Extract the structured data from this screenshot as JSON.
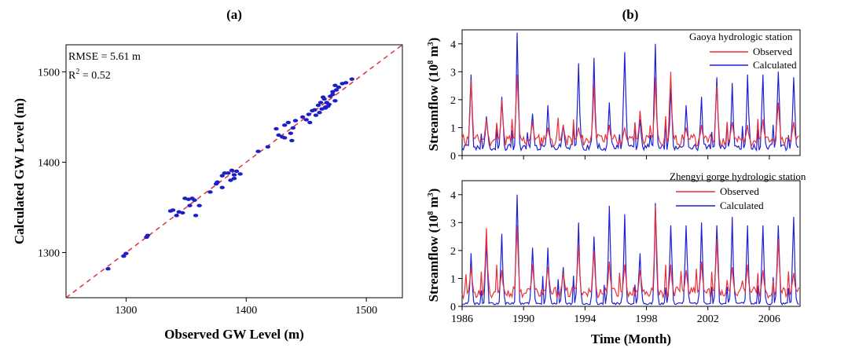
{
  "colors": {
    "observed": "#e8313a",
    "calculated": "#1f1fd6",
    "scatter": "#1e1ec8",
    "one_to_one": "#e0303a"
  },
  "chart_data": [
    {
      "panel_label": "(a)",
      "type": "scatter",
      "xlabel": "Observed GW Level (m)",
      "ylabel": "Calculated GW Level (m)",
      "xlim": [
        1250,
        1530
      ],
      "ylim": [
        1250,
        1530
      ],
      "xticks": [
        1300,
        1400,
        1500
      ],
      "yticks": [
        1300,
        1400,
        1500
      ],
      "annotations": {
        "rmse": "RMSE = 5.61 m",
        "r2_prefix": "R",
        "r2_exp": "2",
        "r2_value": " = 0.52"
      },
      "one_to_one_line": true,
      "points": [
        [
          1285,
          1282
        ],
        [
          1298,
          1296
        ],
        [
          1300,
          1299
        ],
        [
          1317,
          1317
        ],
        [
          1318,
          1319
        ],
        [
          1337,
          1346
        ],
        [
          1339,
          1347
        ],
        [
          1342,
          1341
        ],
        [
          1344,
          1345
        ],
        [
          1347,
          1344
        ],
        [
          1349,
          1360
        ],
        [
          1352,
          1359
        ],
        [
          1355,
          1360
        ],
        [
          1357,
          1358
        ],
        [
          1358,
          1341
        ],
        [
          1353,
          1352
        ],
        [
          1361,
          1352
        ],
        [
          1375,
          1376
        ],
        [
          1380,
          1385
        ],
        [
          1382,
          1388
        ],
        [
          1385,
          1388
        ],
        [
          1388,
          1391
        ],
        [
          1390,
          1386
        ],
        [
          1392,
          1390
        ],
        [
          1395,
          1387
        ],
        [
          1387,
          1380
        ],
        [
          1380,
          1372
        ],
        [
          1390,
          1382
        ],
        [
          1370,
          1367
        ],
        [
          1376,
          1378
        ],
        [
          1410,
          1412
        ],
        [
          1418,
          1417
        ],
        [
          1425,
          1437
        ],
        [
          1427,
          1430
        ],
        [
          1430,
          1428
        ],
        [
          1432,
          1441
        ],
        [
          1435,
          1444
        ],
        [
          1437,
          1432
        ],
        [
          1439,
          1438
        ],
        [
          1438,
          1424
        ],
        [
          1441,
          1446
        ],
        [
          1432,
          1427
        ],
        [
          1447,
          1450
        ],
        [
          1450,
          1447
        ],
        [
          1452,
          1453
        ],
        [
          1455,
          1457
        ],
        [
          1458,
          1452
        ],
        [
          1460,
          1463
        ],
        [
          1462,
          1466
        ],
        [
          1463,
          1459
        ],
        [
          1465,
          1470
        ],
        [
          1466,
          1461
        ],
        [
          1467,
          1466
        ],
        [
          1468,
          1462
        ],
        [
          1469,
          1464
        ],
        [
          1470,
          1473
        ],
        [
          1472,
          1478
        ],
        [
          1474,
          1468
        ],
        [
          1475,
          1480
        ],
        [
          1477,
          1483
        ],
        [
          1480,
          1487
        ],
        [
          1483,
          1488
        ],
        [
          1488,
          1492
        ],
        [
          1457,
          1458
        ],
        [
          1453,
          1444
        ],
        [
          1461,
          1455
        ],
        [
          1466,
          1460
        ],
        [
          1472,
          1475
        ],
        [
          1474,
          1485
        ],
        [
          1464,
          1472
        ]
      ]
    },
    {
      "panel_label": "(b)",
      "type": "line",
      "title": "Gaoya hydrologic station",
      "ylabel_base": "Streamflow (10",
      "ylabel_exp1": "8",
      "ylabel_mid": " m",
      "ylabel_exp2": "3",
      "ylabel_end": ")",
      "xlim": [
        1986,
        2008
      ],
      "ylim": [
        0,
        4.5
      ],
      "yticks": [
        0,
        1,
        2,
        3,
        4
      ],
      "series": [
        {
          "name": "Observed",
          "peaks": [
            2.7,
            1.3,
            2.0,
            2.9,
            1.2,
            1.0,
            1.1,
            1.0,
            2.6,
            1.1,
            1.0,
            1.6,
            2.8,
            3.0,
            1.0,
            1.1,
            2.5,
            1.2,
            1.1,
            1.3,
            1.9,
            1.2
          ],
          "base": 0.55
        },
        {
          "name": "Calculated",
          "peaks": [
            2.9,
            1.4,
            2.1,
            4.4,
            1.5,
            1.8,
            1.1,
            3.3,
            3.5,
            1.9,
            3.7,
            1.3,
            4.0,
            2.4,
            1.8,
            2.1,
            2.8,
            2.6,
            2.9,
            2.9,
            3.0,
            2.8
          ],
          "base": 0.3
        }
      ]
    },
    {
      "type": "line",
      "title": "Zhengyi gorge hydrologic station",
      "xlabel": "Time (Month)",
      "ylabel_base": "Streamflow (10",
      "ylabel_exp1": "8",
      "ylabel_mid": " m",
      "ylabel_exp2": "3",
      "ylabel_end": ")",
      "xlim": [
        1986,
        2008
      ],
      "ylim": [
        0,
        4.5
      ],
      "xticks": [
        1986,
        1990,
        1994,
        1998,
        2002,
        2006
      ],
      "yticks": [
        0,
        1,
        2,
        3,
        4
      ],
      "series": [
        {
          "name": "Observed",
          "peaks": [
            1.4,
            2.8,
            1.3,
            2.9,
            1.5,
            1.4,
            1.2,
            2.2,
            2.0,
            1.6,
            1.5,
            1.3,
            3.6,
            1.5,
            1.3,
            1.6,
            2.4,
            1.4,
            1.5,
            1.3,
            2.4,
            1.2
          ],
          "base": 0.5
        },
        {
          "name": "Calculated",
          "peaks": [
            1.9,
            2.3,
            2.6,
            4.0,
            2.1,
            2.1,
            1.4,
            3.0,
            2.5,
            3.6,
            3.3,
            1.9,
            3.7,
            2.9,
            2.9,
            3.0,
            2.9,
            3.2,
            2.9,
            2.9,
            2.9,
            3.2
          ],
          "base": 0.1
        }
      ]
    }
  ]
}
